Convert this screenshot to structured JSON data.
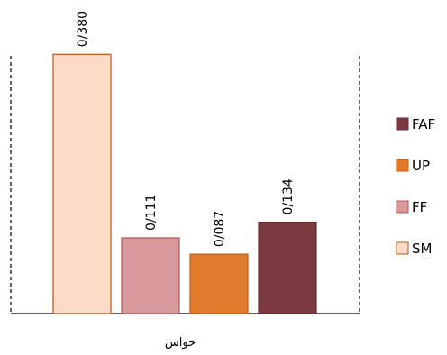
{
  "chart_data": {
    "type": "bar",
    "xlabel": "حواس",
    "ylim": [
      0,
      0.42
    ],
    "series": [
      {
        "name": "SM",
        "value": 0.38,
        "label": "0/380",
        "fill": "#fcdcc6",
        "stroke": "#b5541c"
      },
      {
        "name": "FF",
        "value": 0.111,
        "label": "0/111",
        "fill": "#d89a9d",
        "stroke": "#c0504d"
      },
      {
        "name": "UP",
        "value": 0.087,
        "label": "0/087",
        "fill": "#e07a2c",
        "stroke": "#c55a11"
      },
      {
        "name": "FAF",
        "value": 0.134,
        "label": "0/134",
        "fill": "#7b3a3f",
        "stroke": "#6a2c31"
      }
    ],
    "legend": {
      "placement": "right",
      "order": [
        "FAF",
        "UP",
        "FF",
        "SM"
      ]
    },
    "grid": false
  }
}
